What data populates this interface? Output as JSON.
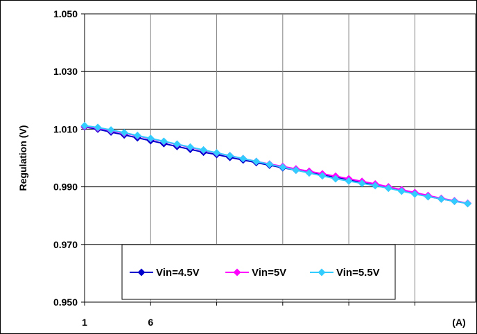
{
  "chart_data": {
    "type": "line",
    "title": "",
    "xlabel": "",
    "ylabel": "Regulation (V)",
    "x_unit_label": "(A)",
    "x_tick_labels": [
      "1",
      "6"
    ],
    "y_tick_labels": [
      "0.950",
      "0.970",
      "0.990",
      "1.010",
      "1.030",
      "1.050"
    ],
    "ylim": [
      0.95,
      1.05
    ],
    "xlim": [
      1,
      30
    ],
    "grid": true,
    "legend_placement": "bottom-center",
    "x": [
      1,
      2,
      3,
      4,
      5,
      6,
      7,
      8,
      9,
      10,
      11,
      12,
      13,
      14,
      15,
      16,
      17,
      18,
      19,
      20,
      21,
      22,
      23,
      24,
      25,
      26,
      27,
      28,
      29,
      30
    ],
    "series": [
      {
        "name": "Vin=4.5V",
        "color": "#0000CC",
        "marker": "diamond",
        "values": [
          1.0108,
          1.01,
          1.009,
          1.008,
          1.007,
          1.006,
          1.005,
          1.004,
          1.003,
          1.002,
          1.0012,
          1.0002,
          0.9993,
          0.9984,
          0.9975,
          0.9966,
          0.9958,
          0.995,
          0.9942,
          0.9934,
          0.9925,
          0.9915,
          0.9906,
          0.9896,
          0.9886,
          0.9876,
          0.9866,
          0.9858,
          0.985,
          0.9842
        ]
      },
      {
        "name": "Vin=5V",
        "color": "#FF00FF",
        "marker": "diamond",
        "values": [
          1.011,
          1.0104,
          1.0095,
          1.0086,
          1.0077,
          1.0067,
          1.0057,
          1.0047,
          1.0037,
          1.0027,
          1.0017,
          1.0008,
          0.9998,
          0.9988,
          0.9979,
          0.9971,
          0.9962,
          0.9954,
          0.9945,
          0.9937,
          0.9928,
          0.9919,
          0.991,
          0.99,
          0.989,
          0.988,
          0.987,
          0.986,
          0.9852,
          0.9843
        ]
      },
      {
        "name": "Vin=5.5V",
        "color": "#33CCFF",
        "marker": "diamond",
        "values": [
          1.0112,
          1.0106,
          1.0097,
          1.0088,
          1.0078,
          1.0068,
          1.0058,
          1.0048,
          1.0038,
          1.0028,
          1.0018,
          1.0008,
          0.9998,
          0.9988,
          0.9978,
          0.9968,
          0.9958,
          0.9948,
          0.9938,
          0.9928,
          0.992,
          0.9912,
          0.9904,
          0.9895,
          0.9885,
          0.9875,
          0.9866,
          0.9858,
          0.985,
          0.9842
        ]
      }
    ]
  }
}
